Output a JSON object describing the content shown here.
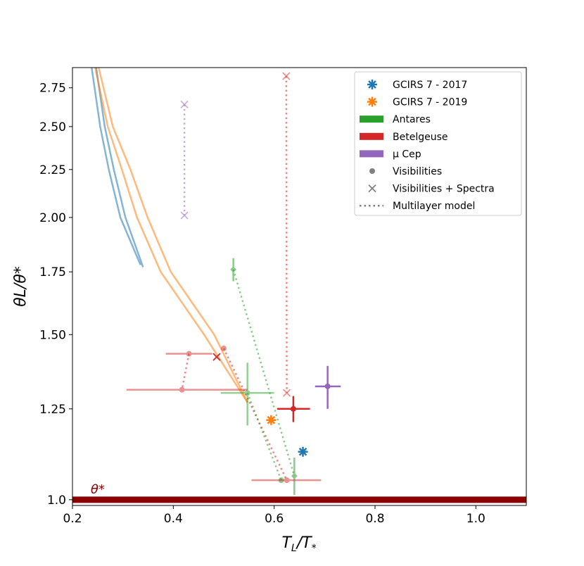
{
  "chart_data": {
    "type": "scatter",
    "xlabel": "T_L/T_*",
    "ylabel": "θ_L/θ_*",
    "xlabel_main": "T",
    "xlabel_sub": "L",
    "xlabel_den": "/T",
    "xlabel_densub": "*",
    "ylabel_text": "θL/θ*",
    "xlim": [
      0.2,
      1.1
    ],
    "ylim": [
      0.986,
      2.89
    ],
    "yscale": "log",
    "xticks": [
      "0.2",
      "0.4",
      "0.6",
      "0.8",
      "1.0"
    ],
    "xtick_values": [
      0.2,
      0.4,
      0.6,
      0.8,
      1.0
    ],
    "yticks": [
      "1.0",
      "1.25",
      "1.50",
      "1.75",
      "2.00",
      "2.25",
      "2.50",
      "2.75"
    ],
    "ytick_values": [
      1.0,
      1.25,
      1.5,
      1.75,
      2.0,
      2.25,
      2.5,
      2.75
    ],
    "annotation": "θ*",
    "annotation_x": 0.25,
    "reference_line": {
      "y": 1.0,
      "color": "#8b0000"
    },
    "colors": {
      "blue": "#1f77b4",
      "orange": "#ff7f0e",
      "green": "#2ca02c",
      "red": "#d62728",
      "purple": "#9467bd"
    },
    "curves": [
      {
        "color": "blue",
        "points": [
          [
            0.238,
            2.89
          ],
          [
            0.255,
            2.5
          ],
          [
            0.272,
            2.25
          ],
          [
            0.295,
            2.0
          ],
          [
            0.335,
            1.78
          ]
        ]
      },
      {
        "color": "blue",
        "points": [
          [
            0.247,
            2.89
          ],
          [
            0.264,
            2.5
          ],
          [
            0.282,
            2.25
          ],
          [
            0.305,
            2.0
          ],
          [
            0.34,
            1.77
          ]
        ]
      },
      {
        "color": "orange",
        "points": [
          [
            0.245,
            2.89
          ],
          [
            0.27,
            2.5
          ],
          [
            0.298,
            2.25
          ],
          [
            0.328,
            2.0
          ],
          [
            0.375,
            1.75
          ],
          [
            0.461,
            1.5
          ],
          [
            0.547,
            1.27
          ]
        ]
      },
      {
        "color": "orange",
        "points": [
          [
            0.252,
            2.89
          ],
          [
            0.28,
            2.5
          ],
          [
            0.315,
            2.25
          ],
          [
            0.349,
            2.0
          ],
          [
            0.395,
            1.75
          ],
          [
            0.481,
            1.5
          ],
          [
            0.547,
            1.27
          ]
        ]
      }
    ],
    "dotted_lines": [
      {
        "color": "red",
        "alpha": 0.55,
        "points": [
          [
            0.431,
            1.431
          ],
          [
            0.417,
            1.31
          ]
        ]
      },
      {
        "color": "red",
        "alpha": 0.55,
        "points": [
          [
            0.5,
            1.45
          ],
          [
            0.625,
            1.049
          ]
        ]
      },
      {
        "color": "red",
        "alpha": 0.55,
        "points": [
          [
            0.624,
            2.83
          ],
          [
            0.625,
            1.3
          ]
        ]
      },
      {
        "color": "green",
        "alpha": 0.55,
        "points": [
          [
            0.519,
            1.76
          ],
          [
            0.64,
            1.06
          ]
        ]
      },
      {
        "color": "green",
        "alpha": 0.55,
        "points": [
          [
            0.547,
            1.3
          ],
          [
            0.614,
            1.049
          ]
        ]
      },
      {
        "color": "purple",
        "alpha": 0.55,
        "points": [
          [
            0.422,
            2.64
          ],
          [
            0.422,
            2.01
          ]
        ]
      }
    ],
    "points": [
      {
        "name": "GCIRS 7 - 2017",
        "color": "blue",
        "marker": "star",
        "x": 0.657,
        "y": 1.125,
        "alpha": 1
      },
      {
        "name": "GCIRS 7 - 2019",
        "color": "orange",
        "marker": "star",
        "x": 0.594,
        "y": 1.216,
        "alpha": 1
      },
      {
        "name": "Antares",
        "color": "green",
        "marker": "diamond",
        "x": 0.519,
        "y": 1.76,
        "alpha": 0.55,
        "yerr": [
          1.71,
          1.81
        ]
      },
      {
        "name": "Antares",
        "color": "green",
        "marker": "circle",
        "x": 0.547,
        "y": 1.3,
        "alpha": 0.5,
        "xerr": [
          0.494,
          0.6
        ],
        "yerr": [
          1.2,
          1.4
        ]
      },
      {
        "name": "Antares",
        "color": "green",
        "marker": "diamond",
        "x": 0.64,
        "y": 1.06,
        "alpha": 0.55,
        "yerr": [
          1.012,
          1.109
        ]
      },
      {
        "name": "Antares",
        "color": "green",
        "marker": "circle",
        "x": 0.614,
        "y": 1.049,
        "alpha": 0.55
      },
      {
        "name": "Betelgeuse",
        "color": "red",
        "marker": "circle",
        "x": 0.625,
        "y": 1.049,
        "alpha": 0.5,
        "xerr": [
          0.555,
          0.693
        ]
      },
      {
        "name": "Betelgeuse",
        "color": "red",
        "marker": "circle",
        "x": 0.431,
        "y": 1.431,
        "alpha": 0.5,
        "xerr": [
          0.385,
          0.477
        ]
      },
      {
        "name": "Betelgeuse",
        "color": "red",
        "marker": "circle",
        "x": 0.417,
        "y": 1.31,
        "alpha": 0.5,
        "xerr": [
          0.307,
          0.547
        ]
      },
      {
        "name": "Betelgeuse",
        "color": "red",
        "marker": "circle",
        "x": 0.5,
        "y": 1.45,
        "alpha": 0.5
      },
      {
        "name": "Betelgeuse",
        "color": "red",
        "marker": "x",
        "x": 0.486,
        "y": 1.42,
        "alpha": 1
      },
      {
        "name": "Betelgeuse",
        "color": "red",
        "marker": "x",
        "x": 0.624,
        "y": 2.83,
        "alpha": 0.5
      },
      {
        "name": "Betelgeuse",
        "color": "red",
        "marker": "x",
        "x": 0.625,
        "y": 1.3,
        "alpha": 0.5
      },
      {
        "name": "Betelgeuse",
        "color": "red",
        "marker": "circle",
        "x": 0.638,
        "y": 1.25,
        "alpha": 1,
        "xerr": [
          0.606,
          0.671
        ],
        "yerr": [
          1.21,
          1.29
        ]
      },
      {
        "name": "μ Cep",
        "color": "purple",
        "marker": "circle",
        "x": 0.706,
        "y": 1.321,
        "alpha": 1,
        "xerr": [
          0.681,
          0.732
        ],
        "yerr": [
          1.25,
          1.389
        ]
      },
      {
        "name": "μ Cep",
        "color": "purple",
        "marker": "x",
        "x": 0.422,
        "y": 2.64,
        "alpha": 0.5
      },
      {
        "name": "μ Cep",
        "color": "purple",
        "marker": "x",
        "x": 0.422,
        "y": 2.01,
        "alpha": 0.5
      }
    ],
    "legend": {
      "placement": "top-right",
      "entries": [
        {
          "label": "GCIRS 7 - 2017",
          "kind": "star",
          "color": "#1f77b4"
        },
        {
          "label": "GCIRS 7 - 2019",
          "kind": "star",
          "color": "#ff7f0e"
        },
        {
          "label": "Antares",
          "kind": "patch",
          "color": "#2ca02c"
        },
        {
          "label": "Betelgeuse",
          "kind": "patch",
          "color": "#d62728"
        },
        {
          "label": "μ Cep",
          "kind": "patch",
          "color": "#9467bd"
        },
        {
          "label": "Visibilities",
          "kind": "circle",
          "color": "#808080"
        },
        {
          "label": "Visibilities + Spectra",
          "kind": "x",
          "color": "#808080"
        },
        {
          "label": "Multilayer model",
          "kind": "dotted",
          "color": "#808080"
        }
      ]
    }
  }
}
